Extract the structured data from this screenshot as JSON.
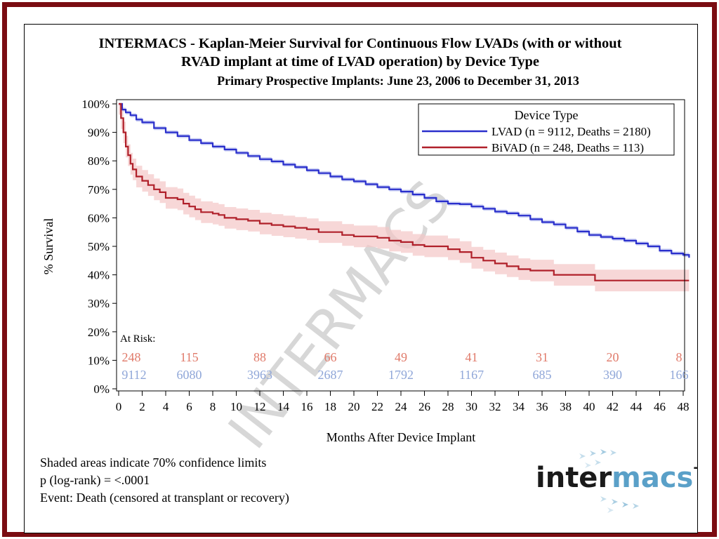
{
  "chart_data": {
    "type": "line",
    "title_line1": "INTERMACS - Kaplan-Meier Survival for Continuous Flow LVADs (with or without",
    "title_line2": "RVAD implant at time of LVAD operation) by Device Type",
    "subtitle": "Primary Prospective Implants: June 23, 2006 to December 31, 2013",
    "xlabel": "Months After Device Implant",
    "ylabel": "% Survival",
    "xlim": [
      0,
      48.5
    ],
    "ylim": [
      0,
      100
    ],
    "x_ticks": [
      0,
      2,
      4,
      6,
      8,
      10,
      12,
      14,
      16,
      18,
      20,
      22,
      24,
      26,
      28,
      30,
      32,
      34,
      36,
      38,
      40,
      42,
      44,
      46,
      48
    ],
    "y_ticks": [
      0,
      10,
      20,
      30,
      40,
      50,
      60,
      70,
      80,
      90,
      100
    ],
    "y_tick_labels": [
      "0%",
      "10%",
      "20%",
      "30%",
      "40%",
      "50%",
      "60%",
      "70%",
      "80%",
      "90%",
      "100%"
    ],
    "legend": {
      "title": "Device Type",
      "placement": "top-right",
      "entries": [
        "LVAD (n = 9112, Deaths = 2180)",
        "BiVAD (n = 248, Deaths = 113)"
      ]
    },
    "series": [
      {
        "name": "LVAD",
        "color": "#2a2fcc",
        "band_color": "#b8bff0",
        "x": [
          0,
          0.3,
          0.6,
          1,
          1.5,
          2,
          3,
          4,
          5,
          6,
          7,
          8,
          9,
          10,
          11,
          12,
          13,
          14,
          15,
          16,
          17,
          18,
          19,
          20,
          21,
          22,
          23,
          24,
          25,
          26,
          27,
          28,
          29,
          30,
          31,
          32,
          33,
          34,
          35,
          36,
          37,
          38,
          39,
          40,
          41,
          42,
          43,
          44,
          45,
          46,
          47,
          48,
          48.5
        ],
        "y": [
          100,
          98,
          97,
          96,
          94.5,
          93.5,
          91.5,
          90,
          88.7,
          87.3,
          86.2,
          85,
          84,
          82.8,
          81.7,
          80.6,
          79.8,
          78.7,
          77.8,
          76.7,
          75.7,
          74.5,
          73.5,
          72.8,
          71.8,
          70.8,
          70,
          69.2,
          68.2,
          67,
          65.8,
          65,
          64.8,
          64,
          63.2,
          62.2,
          61.6,
          60.8,
          59.5,
          58.5,
          57.7,
          56.5,
          55.2,
          54,
          53.3,
          52.7,
          52,
          51,
          50,
          48.5,
          47.5,
          47,
          46
        ],
        "band_halfwidth": 0.7
      },
      {
        "name": "BiVAD",
        "color": "#b0202a",
        "band_color": "#f4c6c6",
        "x": [
          0,
          0.2,
          0.4,
          0.6,
          0.8,
          1,
          1.2,
          1.5,
          2,
          2.5,
          3,
          3.5,
          4,
          5,
          5.5,
          6,
          6.5,
          7,
          8,
          8.5,
          9,
          10,
          11,
          12,
          13,
          14,
          15,
          16,
          17,
          18,
          19,
          20,
          22,
          23,
          24,
          25,
          26,
          28,
          29,
          30,
          31,
          32,
          33,
          34,
          35,
          36,
          37,
          38,
          40,
          40.5,
          48.5
        ],
        "y": [
          100,
          95,
          90,
          85,
          82,
          79,
          77,
          74.5,
          73,
          71.5,
          70,
          69,
          67,
          66.5,
          65,
          64,
          63,
          62,
          61.5,
          61,
          60,
          59.5,
          59,
          58,
          57.5,
          57,
          56.5,
          56,
          55,
          55,
          54,
          53.5,
          53,
          52,
          51.5,
          50.5,
          50,
          49,
          48,
          46,
          45,
          44,
          43,
          42,
          41.5,
          41.5,
          40,
          40,
          40,
          38,
          38
        ],
        "band_halfwidth": 3.8
      }
    ],
    "at_risk": {
      "label": "At Risk:",
      "x": [
        0,
        6,
        12,
        18,
        24,
        30,
        36,
        42,
        48
      ],
      "bivad": [
        "248",
        "115",
        "88",
        "66",
        "49",
        "41",
        "31",
        "20",
        "8"
      ],
      "lvad": [
        "9112",
        "6080",
        "3963",
        "2687",
        "1792",
        "1167",
        "685",
        "390",
        "166"
      ],
      "bivad_color": "#e07a6a",
      "lvad_color": "#8fa6d8"
    },
    "watermark": "INTERMACS"
  },
  "notes": [
    "Shaded areas indicate 70% confidence limits",
    "p (log-rank) = <.0001",
    "Event: Death (censored at transplant or recovery)"
  ],
  "logo": {
    "part1": "inter",
    "part2": "macs",
    "tm": "-"
  },
  "colors": {
    "frame": "#7a0c12",
    "logo_dark": "#1a1a1a",
    "logo_accent": "#5aa0c8"
  }
}
